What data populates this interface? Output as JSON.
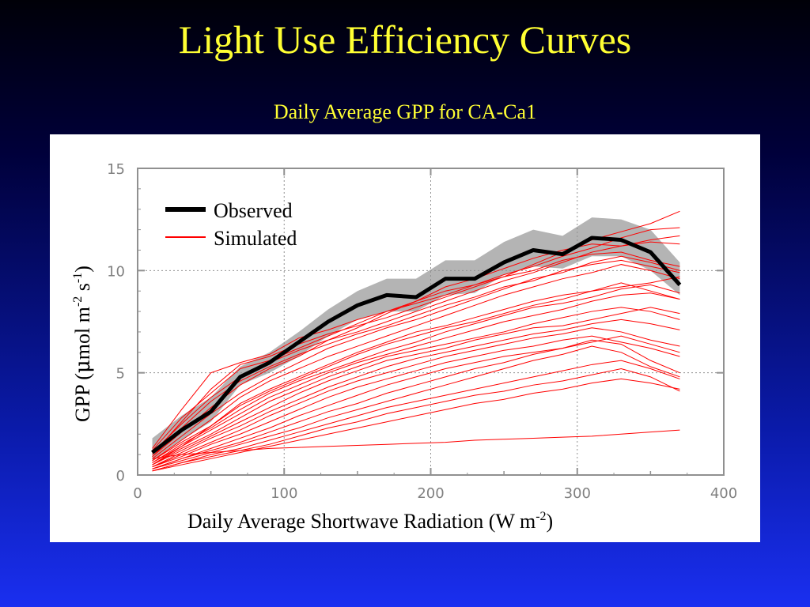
{
  "slide": {
    "title": "Light Use Efficiency Curves",
    "subtitle": "Daily Average GPP for CA-Ca1"
  },
  "colors": {
    "title": "#ffff33",
    "observed": "#000000",
    "simulated": "#ff0000",
    "band": "#b4b4b4"
  },
  "chart_data": {
    "type": "line",
    "xlabel_text": "Daily Average Shortwave Radiation (W m",
    "xlabel_sup": "-2",
    "xlabel_close": ")",
    "ylabel_text": "GPP (",
    "ylabel_mu": "μ",
    "ylabel_unit": "mol m",
    "ylabel_sup1": "-2",
    "ylabel_s": " s",
    "ylabel_sup2": "-1",
    "ylabel_close": ")",
    "xlim": [
      0,
      400
    ],
    "ylim": [
      0,
      15
    ],
    "x_ticks": [
      0,
      100,
      200,
      300,
      400
    ],
    "x_tick_labels": [
      "0",
      "100",
      "200",
      "300",
      "400"
    ],
    "y_ticks": [
      0,
      5,
      10,
      15
    ],
    "y_tick_labels": [
      "0",
      "5",
      "10",
      "15"
    ],
    "grid": true,
    "legend_position": "top-left",
    "legend": [
      "Observed",
      "Simulated"
    ],
    "x": [
      10,
      30,
      50,
      70,
      90,
      110,
      130,
      150,
      170,
      190,
      210,
      230,
      250,
      270,
      290,
      310,
      330,
      350,
      370
    ],
    "observed": {
      "name": "Observed",
      "values": [
        1.1,
        2.2,
        3.1,
        4.8,
        5.5,
        6.5,
        7.5,
        8.3,
        8.8,
        8.7,
        9.6,
        9.6,
        10.4,
        11.0,
        10.8,
        11.6,
        11.5,
        10.9,
        9.3
      ],
      "band_lower": [
        0.7,
        1.7,
        2.6,
        4.4,
        5.0,
        5.8,
        6.8,
        7.6,
        8.0,
        8.0,
        8.8,
        8.9,
        9.8,
        10.2,
        10.1,
        10.7,
        10.7,
        10.0,
        8.8
      ],
      "band_upper": [
        1.8,
        2.9,
        3.8,
        5.3,
        6.0,
        7.0,
        8.1,
        9.0,
        9.6,
        9.6,
        10.5,
        10.5,
        11.4,
        12.0,
        11.7,
        12.6,
        12.5,
        12.0,
        10.4
      ]
    },
    "simulated": [
      {
        "values": [
          1.3,
          3.2,
          5.0,
          5.5,
          5.9,
          6.7,
          7.1,
          7.6,
          8.0,
          8.4,
          8.8,
          9.3,
          9.8,
          10.2,
          10.7,
          11.1,
          11.6,
          12.0,
          12.1
        ]
      },
      {
        "values": [
          1.2,
          2.8,
          4.0,
          5.2,
          5.6,
          6.2,
          6.8,
          7.4,
          8.0,
          8.5,
          9.0,
          9.3,
          9.7,
          10.3,
          10.9,
          11.5,
          11.9,
          12.3,
          12.9
        ]
      },
      {
        "values": [
          1.1,
          2.5,
          3.8,
          4.8,
          5.5,
          6.1,
          6.6,
          7.2,
          7.9,
          8.5,
          9.2,
          9.6,
          10.1,
          10.6,
          11.0,
          11.3,
          11.2,
          11.5,
          11.7
        ]
      },
      {
        "values": [
          0.9,
          2.1,
          3.3,
          4.4,
          5.2,
          5.8,
          6.6,
          7.0,
          7.5,
          8.0,
          8.5,
          9.0,
          9.5,
          9.9,
          10.4,
          10.9,
          11.2,
          11.4,
          11.3
        ]
      },
      {
        "values": [
          0.8,
          1.9,
          3.0,
          4.0,
          4.8,
          5.5,
          6.2,
          6.7,
          7.2,
          7.6,
          8.1,
          8.6,
          9.1,
          9.6,
          9.9,
          10.4,
          10.7,
          10.4,
          10.0
        ]
      },
      {
        "values": [
          0.7,
          1.7,
          2.7,
          3.8,
          4.6,
          5.2,
          5.8,
          6.3,
          6.8,
          7.3,
          7.8,
          8.3,
          8.8,
          9.2,
          9.6,
          9.9,
          10.3,
          10.0,
          9.6
        ]
      },
      {
        "values": [
          0.7,
          1.6,
          2.4,
          3.5,
          4.2,
          4.8,
          5.4,
          6.0,
          6.5,
          7.0,
          7.3,
          7.7,
          8.1,
          8.5,
          8.8,
          9.0,
          9.2,
          9.4,
          9.7
        ]
      },
      {
        "values": [
          0.6,
          1.5,
          2.3,
          3.2,
          4.0,
          4.6,
          5.1,
          5.6,
          6.1,
          6.5,
          7.0,
          7.4,
          7.8,
          8.2,
          8.4,
          8.7,
          9.1,
          9.3,
          8.9
        ]
      },
      {
        "values": [
          0.6,
          1.4,
          2.2,
          3.0,
          3.8,
          4.4,
          5.0,
          5.5,
          5.9,
          6.3,
          6.7,
          7.1,
          7.5,
          7.8,
          8.1,
          8.5,
          8.8,
          8.9,
          8.6
        ]
      },
      {
        "values": [
          0.5,
          1.3,
          2.0,
          2.8,
          3.6,
          4.2,
          4.8,
          5.3,
          5.8,
          6.1,
          6.4,
          6.7,
          7.0,
          7.4,
          7.7,
          8.0,
          8.2,
          8.0,
          7.6
        ]
      },
      {
        "values": [
          0.5,
          1.2,
          1.9,
          2.6,
          3.3,
          4.0,
          4.6,
          5.1,
          5.6,
          5.9,
          6.2,
          6.6,
          6.9,
          7.2,
          7.3,
          7.6,
          7.9,
          8.2,
          7.9
        ]
      },
      {
        "values": [
          0.4,
          1.1,
          1.8,
          2.4,
          3.1,
          3.7,
          4.3,
          4.8,
          5.3,
          5.7,
          6.0,
          6.3,
          6.6,
          6.9,
          7.1,
          7.4,
          7.6,
          7.4,
          7.1
        ]
      },
      {
        "values": [
          0.4,
          1.0,
          1.6,
          2.2,
          2.9,
          3.5,
          4.1,
          4.6,
          5.0,
          5.4,
          5.8,
          6.1,
          6.4,
          6.7,
          6.9,
          7.2,
          7.0,
          6.6,
          6.3
        ]
      },
      {
        "values": [
          0.4,
          0.9,
          1.5,
          2.0,
          2.6,
          3.2,
          3.8,
          4.3,
          4.7,
          5.1,
          5.5,
          5.8,
          6.1,
          6.3,
          6.6,
          6.8,
          6.5,
          6.2,
          5.8
        ]
      },
      {
        "values": [
          0.3,
          0.8,
          1.3,
          1.8,
          2.3,
          2.9,
          3.4,
          3.9,
          4.4,
          4.8,
          5.2,
          5.5,
          5.8,
          6.0,
          6.2,
          6.5,
          6.8,
          6.4,
          6.0
        ]
      },
      {
        "values": [
          0.3,
          0.8,
          1.2,
          1.6,
          2.1,
          2.6,
          3.1,
          3.5,
          4.0,
          4.4,
          4.8,
          5.2,
          5.5,
          5.9,
          6.2,
          6.6,
          6.4,
          5.6,
          5.0
        ]
      },
      {
        "values": [
          0.3,
          0.7,
          1.1,
          1.5,
          1.9,
          2.3,
          2.8,
          3.2,
          3.6,
          4.0,
          4.4,
          4.8,
          5.2,
          5.6,
          5.9,
          6.3,
          6.0,
          5.3,
          4.8
        ]
      },
      {
        "values": [
          0.2,
          0.6,
          1.0,
          1.3,
          1.7,
          2.1,
          2.5,
          2.9,
          3.3,
          3.6,
          3.9,
          4.2,
          4.5,
          4.8,
          5.1,
          5.4,
          5.6,
          5.2,
          4.7
        ]
      },
      {
        "values": [
          0.2,
          0.6,
          0.9,
          1.2,
          1.5,
          1.9,
          2.3,
          2.6,
          3.0,
          3.3,
          3.6,
          3.9,
          4.1,
          4.4,
          4.6,
          4.9,
          5.2,
          4.8,
          4.1
        ]
      },
      {
        "values": [
          0.2,
          0.5,
          0.8,
          1.1,
          1.4,
          1.7,
          2.0,
          2.3,
          2.6,
          2.9,
          3.2,
          3.5,
          3.7,
          4.0,
          4.2,
          4.5,
          4.7,
          4.5,
          4.2
        ]
      },
      {
        "values": [
          0.8,
          1.0,
          1.1,
          1.2,
          1.3,
          1.35,
          1.4,
          1.45,
          1.5,
          1.55,
          1.6,
          1.7,
          1.75,
          1.8,
          1.85,
          1.9,
          2.0,
          2.1,
          2.2
        ]
      },
      {
        "values": [
          1.0,
          2.6,
          4.2,
          5.4,
          5.8,
          6.4,
          6.9,
          7.3,
          7.7,
          8.2,
          8.7,
          9.2,
          9.7,
          10.0,
          10.5,
          10.8,
          10.9,
          10.5,
          10.2
        ]
      },
      {
        "values": [
          0.9,
          2.3,
          3.6,
          4.6,
          5.3,
          5.9,
          6.4,
          6.9,
          7.3,
          7.8,
          8.3,
          8.7,
          9.2,
          9.5,
          10.0,
          10.3,
          10.5,
          10.2,
          9.9
        ]
      },
      {
        "values": [
          0.5,
          1.4,
          2.4,
          3.4,
          4.1,
          4.7,
          5.3,
          5.9,
          6.4,
          6.8,
          7.2,
          7.5,
          7.9,
          8.3,
          8.6,
          9.0,
          9.4,
          9.0,
          8.6
        ]
      }
    ]
  }
}
